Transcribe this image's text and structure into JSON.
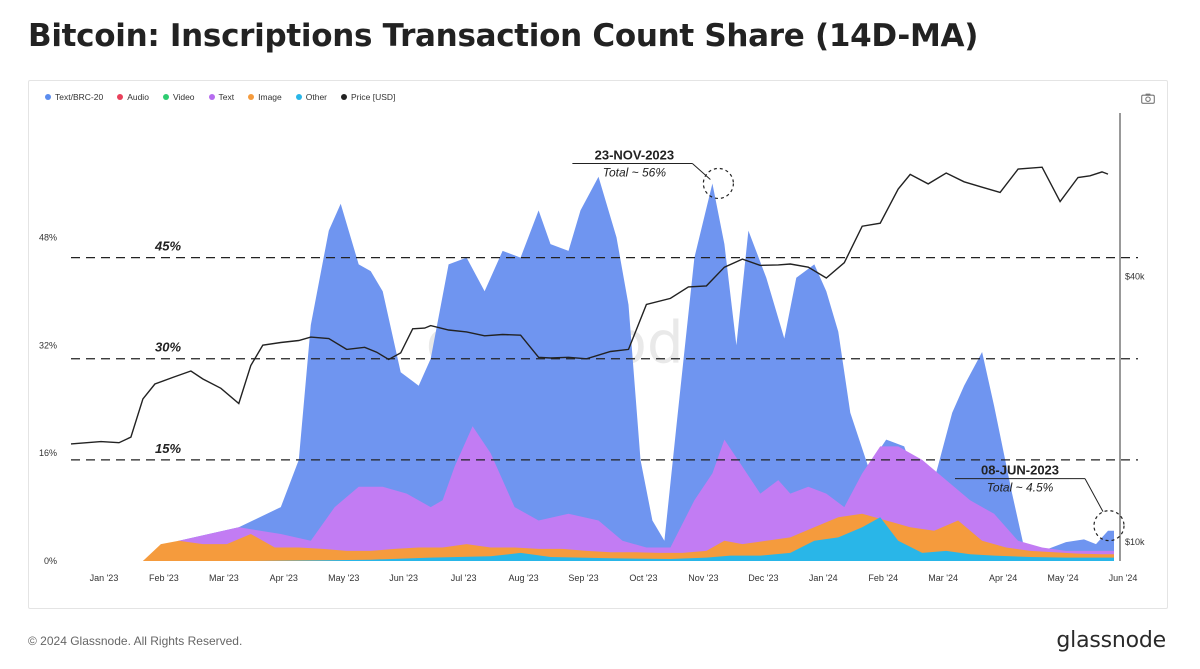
{
  "title": "Bitcoin: Inscriptions Transaction Count Share (14D-MA)",
  "footer": {
    "copyright": "© 2024 Glassnode. All Rights Reserved.",
    "brand": "glassnode"
  },
  "watermark": "glassnode",
  "legend": [
    {
      "label": "Text/BRC-20",
      "color": "#5b8def"
    },
    {
      "label": "Audio",
      "color": "#e9415b"
    },
    {
      "label": "Video",
      "color": "#2ecc71"
    },
    {
      "label": "Text",
      "color": "#b66cf0"
    },
    {
      "label": "Image",
      "color": "#f59b3d"
    },
    {
      "label": "Other",
      "color": "#29b6e8"
    },
    {
      "label": "Price [USD]",
      "color": "#222222"
    }
  ],
  "chart_data": {
    "type": "area",
    "title": "Bitcoin: Inscriptions Transaction Count Share (14D-MA)",
    "x_ticks": [
      "Jan '23",
      "Feb '23",
      "Mar '23",
      "Apr '23",
      "May '23",
      "Jun '23",
      "Jul '23",
      "Aug '23",
      "Sep '23",
      "Oct '23",
      "Nov '23",
      "Dec '23",
      "Jan '24",
      "Feb '24",
      "Mar '24",
      "Apr '24",
      "May '24",
      "Jun '24"
    ],
    "y_left": {
      "ticks": [
        "0%",
        "16%",
        "32%",
        "48%"
      ],
      "values": [
        0,
        16,
        32,
        48
      ],
      "range": [
        0,
        62
      ]
    },
    "y_right": {
      "ticks": [
        "$10k",
        "$40k"
      ],
      "scale": "log",
      "range_usd": [
        9000,
        80000
      ]
    },
    "x_range": [
      0,
      17.4
    ],
    "reference_lines": [
      {
        "value": 45,
        "label": "45%"
      },
      {
        "value": 30,
        "label": "30%"
      },
      {
        "value": 15,
        "label": "15%"
      }
    ],
    "annotations": [
      {
        "date": "23-NOV-2023",
        "text": "Total ~ 56%",
        "x": 10.7,
        "y": 56
      },
      {
        "date": "08-JUN-2023",
        "text": "Total ~ 4.5%",
        "x": 17.35,
        "y": 4.5
      }
    ],
    "series": [
      {
        "name": "Text/BRC-20",
        "color": "#6f95f0",
        "x": [
          0,
          1.2,
          1.8,
          2.8,
          3.5,
          3.8,
          4,
          4.3,
          4.5,
          4.8,
          5,
          5.2,
          5.5,
          5.8,
          6,
          6.3,
          6.6,
          6.9,
          7.2,
          7.5,
          7.8,
          8,
          8.3,
          8.5,
          8.8,
          9.1,
          9.3,
          9.5,
          9.7,
          9.9,
          10.1,
          10.4,
          10.7,
          10.9,
          11.1,
          11.3,
          11.6,
          11.9,
          12.1,
          12.4,
          12.6,
          12.8,
          13,
          13.3,
          13.6,
          13.9,
          14.1,
          14.4,
          14.7,
          14.9,
          15.2,
          15.4,
          15.7,
          15.9,
          16.1,
          16.3,
          16.6,
          16.9,
          17.1,
          17.3,
          17.4
        ],
        "y": [
          0,
          0,
          3,
          5,
          8,
          15,
          35,
          49,
          53,
          44,
          43,
          40,
          28,
          26,
          30,
          44,
          45,
          40,
          46,
          45,
          52,
          47,
          46,
          52,
          57,
          48,
          38,
          15,
          6,
          3,
          20,
          45,
          56,
          47,
          32,
          49,
          42,
          33,
          42,
          44,
          40,
          34,
          22,
          14,
          18,
          17,
          12,
          12,
          22,
          26,
          31,
          23,
          10,
          2,
          1.5,
          1.8,
          2.8,
          3.2,
          2.5,
          4.5,
          4.5
        ]
      },
      {
        "name": "Text",
        "color": "#c27cf3",
        "x": [
          0,
          1.2,
          1.8,
          2.3,
          2.8,
          3.5,
          4,
          4.4,
          4.8,
          5.2,
          5.6,
          6,
          6.2,
          6.4,
          6.7,
          7,
          7.4,
          7.8,
          8.3,
          8.8,
          9.2,
          9.6,
          10,
          10.4,
          10.7,
          10.9,
          11.2,
          11.5,
          11.8,
          12,
          12.3,
          12.6,
          12.9,
          13.2,
          13.5,
          13.8,
          14.2,
          14.6,
          15,
          15.4,
          15.8,
          16.2,
          16.6,
          17,
          17.4
        ],
        "y": [
          0,
          0,
          3,
          4,
          5,
          4,
          3,
          8,
          11,
          11,
          10,
          8,
          9,
          14,
          20,
          16,
          8,
          6,
          7,
          6,
          3,
          2,
          2,
          9,
          13,
          18,
          14,
          10,
          12,
          10,
          11,
          10,
          8,
          13,
          17,
          17,
          15,
          12,
          9,
          7,
          3,
          2,
          1.5,
          1.5,
          1.5
        ]
      },
      {
        "name": "Image",
        "color": "#f59b3d",
        "x": [
          0,
          1.2,
          1.5,
          1.8,
          2.2,
          2.6,
          3,
          3.4,
          3.8,
          4.2,
          4.6,
          5,
          5.4,
          5.8,
          6.2,
          6.6,
          7,
          7.4,
          7.8,
          8.2,
          8.6,
          9,
          9.4,
          9.8,
          10.2,
          10.6,
          10.9,
          11.2,
          11.6,
          12,
          12.4,
          12.8,
          13.2,
          13.6,
          14,
          14.4,
          14.8,
          15.2,
          15.6,
          16,
          16.4,
          16.8,
          17.2,
          17.4
        ],
        "y": [
          0,
          0,
          2.5,
          3,
          2.5,
          2.5,
          4,
          2,
          2,
          1.8,
          1.5,
          1.5,
          1.8,
          2,
          2,
          2.5,
          2,
          2,
          1.8,
          1.8,
          1.5,
          1.3,
          1.3,
          1.2,
          1.2,
          1.5,
          3,
          2.5,
          3,
          3.5,
          5,
          6.5,
          7,
          6,
          5,
          4.5,
          6,
          3,
          2,
          1.5,
          1.3,
          1.1,
          1,
          1
        ]
      },
      {
        "name": "Other",
        "color": "#29b6e8",
        "x": [
          0,
          3,
          5,
          6,
          7,
          7.5,
          8,
          9,
          10,
          10.6,
          11,
          11.5,
          12,
          12.4,
          12.8,
          13.2,
          13.5,
          13.8,
          14.2,
          14.6,
          15,
          15.4,
          16,
          16.6,
          17.4
        ],
        "y": [
          0,
          0,
          0.2,
          0.5,
          0.7,
          1.2,
          0.6,
          0.4,
          0.3,
          0.5,
          0.8,
          0.8,
          1.2,
          3,
          3.5,
          5,
          6.5,
          3,
          1.2,
          1.5,
          1,
          0.8,
          0.6,
          0.5,
          0.5
        ]
      },
      {
        "name": "Price [USD]",
        "color": "#222222",
        "unit": "USD",
        "x": [
          0,
          0.5,
          0.8,
          1,
          1.2,
          1.4,
          1.7,
          2,
          2.2,
          2.5,
          2.8,
          3,
          3.2,
          3.5,
          3.8,
          4,
          4.3,
          4.6,
          4.9,
          5.1,
          5.3,
          5.5,
          5.7,
          5.9,
          6,
          6.3,
          6.6,
          6.9,
          7.2,
          7.5,
          7.8,
          8,
          8.3,
          8.6,
          9,
          9.3,
          9.6,
          10,
          10.3,
          10.6,
          10.9,
          11.2,
          11.5,
          11.8,
          12,
          12.3,
          12.6,
          12.9,
          13.2,
          13.5,
          13.8,
          14,
          14.3,
          14.6,
          14.9,
          15.2,
          15.5,
          15.8,
          16.2,
          16.5,
          16.8,
          17,
          17.2,
          17.3
        ],
        "y": [
          16600,
          16800,
          16700,
          17200,
          21000,
          22700,
          23500,
          24300,
          23300,
          22200,
          20500,
          25000,
          27800,
          28200,
          28500,
          29000,
          28800,
          27200,
          27500,
          26800,
          25800,
          26700,
          30300,
          30400,
          30800,
          30100,
          29800,
          29200,
          29400,
          29300,
          26100,
          26000,
          26100,
          25900,
          26900,
          27200,
          34400,
          35500,
          37700,
          37900,
          41800,
          43600,
          42200,
          42300,
          42500,
          41800,
          39500,
          42800,
          51800,
          52600,
          62900,
          67900,
          64600,
          68400,
          65300,
          63500,
          61800,
          69800,
          70500,
          58900,
          66800,
          67400,
          68800,
          68000
        ]
      }
    ]
  }
}
